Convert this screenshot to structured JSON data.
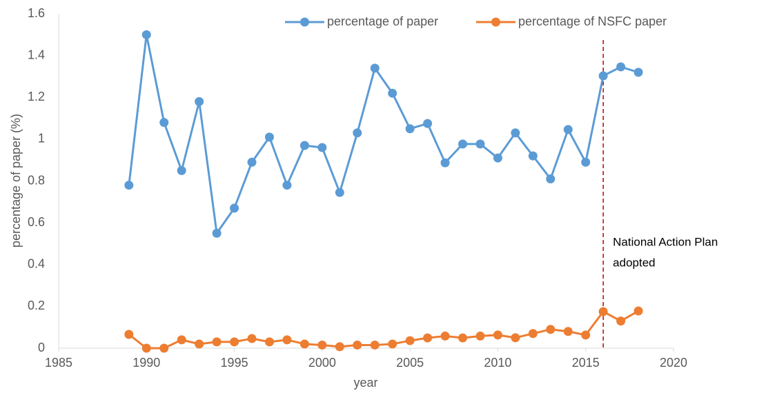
{
  "chart_data": {
    "type": "line",
    "x_label": "year",
    "y_label": "percentage of paper (%)",
    "x": [
      1989,
      1990,
      1991,
      1992,
      1993,
      1994,
      1995,
      1996,
      1997,
      1998,
      1999,
      2000,
      2001,
      2002,
      2003,
      2004,
      2005,
      2006,
      2007,
      2008,
      2009,
      2010,
      2011,
      2012,
      2013,
      2014,
      2015,
      2016,
      2017,
      2018
    ],
    "series": [
      {
        "name": "percentage of paper",
        "color": "#5b9bd5",
        "values": [
          0.78,
          1.5,
          1.08,
          0.85,
          1.18,
          0.55,
          0.67,
          0.89,
          1.01,
          0.78,
          0.97,
          0.96,
          0.745,
          1.03,
          1.34,
          1.22,
          1.05,
          1.075,
          0.887,
          0.977,
          0.977,
          0.91,
          1.03,
          0.92,
          0.81,
          1.046,
          0.89,
          1.303,
          1.346,
          1.32
        ]
      },
      {
        "name": "percentage of NSFC paper",
        "color": "#ed7d31",
        "values": [
          0.066,
          0,
          0,
          0.04,
          0.02,
          0.03,
          0.03,
          0.046,
          0.03,
          0.04,
          0.02,
          0.015,
          0.007,
          0.015,
          0.015,
          0.02,
          0.036,
          0.049,
          0.058,
          0.049,
          0.058,
          0.063,
          0.05,
          0.07,
          0.09,
          0.08,
          0.063,
          0.175,
          0.13,
          0.178
        ]
      }
    ],
    "xlim": [
      1985,
      2020
    ],
    "xticks": [
      1985,
      1990,
      1995,
      2000,
      2005,
      2010,
      2015,
      2020
    ],
    "ylim": [
      0,
      1.6
    ],
    "yticks": [
      0,
      0.2,
      0.4,
      0.6,
      0.8,
      1,
      1.2,
      1.4,
      1.6
    ],
    "grid": false,
    "legend": "top",
    "annotation": {
      "x": 2016,
      "color": "#c00000",
      "lines": [
        "National Action Plan",
        "adopted"
      ]
    }
  }
}
